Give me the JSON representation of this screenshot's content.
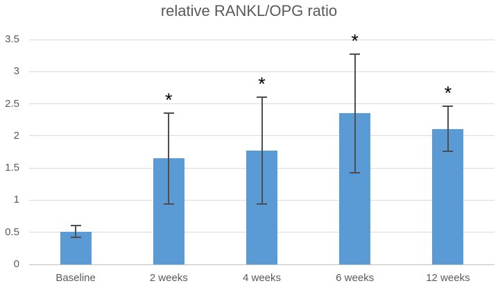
{
  "chart_data": {
    "type": "bar",
    "title": "relative RANKL/OPG ratio",
    "categories": [
      "Baseline",
      "2 weeks",
      "4 weeks",
      "6 weeks",
      "12 weeks"
    ],
    "values": [
      0.51,
      1.65,
      1.77,
      2.35,
      2.11
    ],
    "error_bars": [
      0.09,
      0.71,
      0.83,
      0.92,
      0.35
    ],
    "significance_markers": [
      "",
      "*",
      "*",
      "*",
      "*"
    ],
    "xlabel": "",
    "ylabel": "",
    "ylim": [
      0,
      3.5
    ],
    "yticks": [
      0,
      0.5,
      1,
      1.5,
      2,
      2.5,
      3,
      3.5
    ],
    "ytick_labels": [
      "0",
      "0.5",
      "1",
      "1.5",
      "2",
      "2.5",
      "3",
      "3.5"
    ],
    "grid": true,
    "legend": "none",
    "colors": {
      "bar": "#5b9bd5",
      "error_bar": "#4d4d4d",
      "gridline": "#d9d9d9",
      "axis_line": "#bfbfbf",
      "label_text": "#595959",
      "title_text": "#595959",
      "marker": "#000000",
      "background": "#ffffff"
    }
  }
}
